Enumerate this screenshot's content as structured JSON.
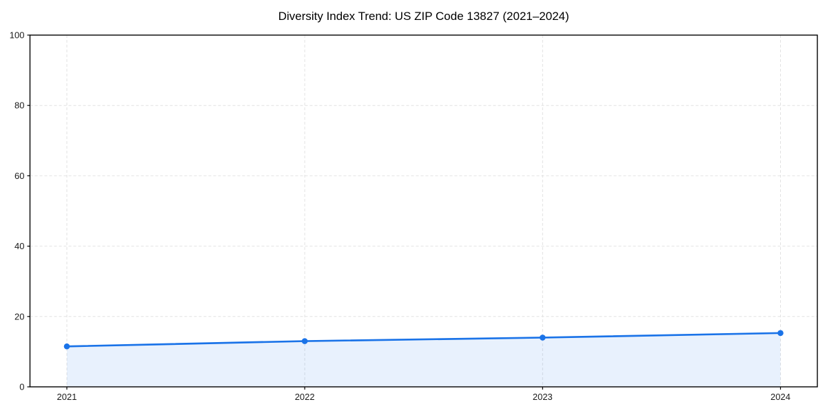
{
  "figure": {
    "background": "#ffffff"
  },
  "chart_data": {
    "type": "line",
    "title": "Diversity Index Trend: US ZIP Code 13827 (2021–2024)",
    "x": [
      "2021",
      "2022",
      "2023",
      "2024"
    ],
    "series": [
      {
        "name": "Diversity Index",
        "values": [
          11.5,
          13.0,
          14.0,
          15.3
        ]
      }
    ],
    "xlabel": "",
    "ylabel": "",
    "ylim": [
      0,
      100
    ],
    "yticks": [
      0,
      20,
      40,
      60,
      80,
      100
    ],
    "grid": true,
    "grid_style": "dashed",
    "legend": "none",
    "marker": "circle",
    "area_fill": true,
    "colors": {
      "line": "#1a73e8",
      "marker": "#1a73e8",
      "fill": "rgba(26,115,232,0.10)",
      "grid": "#e2e2e2",
      "axis": "#000000",
      "tick_label": "#1a1a1a",
      "title": "#000000"
    }
  }
}
